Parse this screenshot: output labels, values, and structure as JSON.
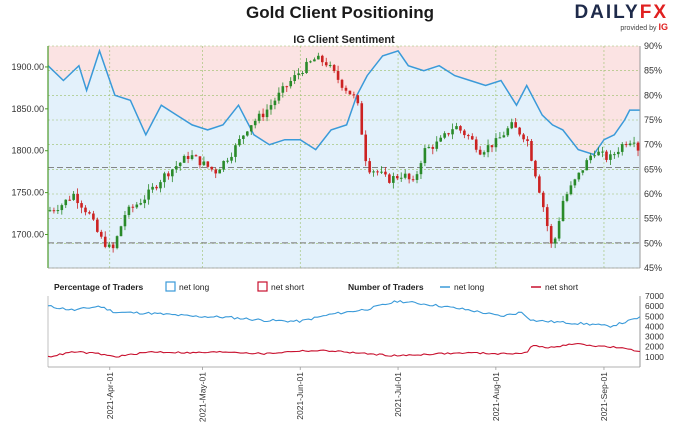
{
  "header": {
    "title": "Gold Client Positioning",
    "logo_main": "DAILY",
    "logo_accent": "FX",
    "logo_sub": "provided by",
    "logo_sub_brand": "IG"
  },
  "colors": {
    "bull": "#2a8a2a",
    "bear": "#cc2222",
    "long": "#3a9ad9",
    "short": "#c8102e",
    "long_fill": "#e3f1fb",
    "short_fill": "#fbe3e3"
  },
  "chart_data": [
    {
      "type": "candlestick",
      "title": "IG Client Sentiment",
      "y_left_ticks": [
        "1700.00",
        "1750.00",
        "1800.00",
        "1850.00",
        "1900.00"
      ],
      "y_left_range": [
        1660,
        1925
      ],
      "y_right_ticks": [
        "45%",
        "50%",
        "55%",
        "60%",
        "65%",
        "70%",
        "75%",
        "80%",
        "85%",
        "90%"
      ],
      "y_right_range": [
        45,
        90
      ],
      "price_path": [
        [
          0,
          1728
        ],
        [
          5,
          1735
        ],
        [
          10,
          1748
        ],
        [
          16,
          1724
        ],
        [
          20,
          1697
        ],
        [
          25,
          1680
        ],
        [
          30,
          1725
        ],
        [
          38,
          1745
        ],
        [
          45,
          1770
        ],
        [
          55,
          1795
        ],
        [
          65,
          1775
        ],
        [
          72,
          1800
        ],
        [
          78,
          1830
        ],
        [
          84,
          1845
        ],
        [
          92,
          1875
        ],
        [
          98,
          1895
        ],
        [
          104,
          1910
        ],
        [
          108,
          1905
        ],
        [
          114,
          1880
        ],
        [
          120,
          1860
        ],
        [
          124,
          1780
        ],
        [
          128,
          1775
        ],
        [
          132,
          1765
        ],
        [
          138,
          1772
        ],
        [
          142,
          1760
        ],
        [
          146,
          1800
        ],
        [
          152,
          1810
        ],
        [
          158,
          1830
        ],
        [
          164,
          1815
        ],
        [
          168,
          1800
        ],
        [
          174,
          1810
        ],
        [
          180,
          1830
        ],
        [
          186,
          1815
        ],
        [
          192,
          1740
        ],
        [
          196,
          1680
        ],
        [
          200,
          1740
        ],
        [
          206,
          1770
        ],
        [
          212,
          1800
        ],
        [
          218,
          1790
        ],
        [
          224,
          1810
        ],
        [
          228,
          1815
        ],
        [
          230,
          1795
        ]
      ],
      "long_pct_path": [
        [
          0,
          86
        ],
        [
          6,
          83
        ],
        [
          12,
          86
        ],
        [
          15,
          81
        ],
        [
          20,
          89
        ],
        [
          26,
          80
        ],
        [
          32,
          79
        ],
        [
          38,
          72
        ],
        [
          44,
          78
        ],
        [
          50,
          76
        ],
        [
          56,
          74
        ],
        [
          62,
          73
        ],
        [
          68,
          74
        ],
        [
          74,
          78
        ],
        [
          80,
          72
        ],
        [
          86,
          70
        ],
        [
          92,
          71
        ],
        [
          98,
          71
        ],
        [
          104,
          69
        ],
        [
          110,
          73
        ],
        [
          116,
          74
        ],
        [
          120,
          80
        ],
        [
          124,
          84
        ],
        [
          130,
          88
        ],
        [
          136,
          89
        ],
        [
          140,
          86
        ],
        [
          146,
          85
        ],
        [
          152,
          86
        ],
        [
          158,
          84
        ],
        [
          164,
          83
        ],
        [
          170,
          82
        ],
        [
          176,
          83
        ],
        [
          182,
          78
        ],
        [
          186,
          82
        ],
        [
          192,
          76
        ],
        [
          196,
          74
        ],
        [
          200,
          73
        ],
        [
          206,
          69
        ],
        [
          212,
          68
        ],
        [
          216,
          71
        ],
        [
          220,
          72
        ],
        [
          224,
          75
        ],
        [
          226,
          77
        ],
        [
          230,
          77
        ]
      ],
      "dashed_price_levels": [
        1690,
        1780
      ],
      "x_tick_positions": [
        24,
        60,
        98,
        136,
        174,
        216
      ]
    },
    {
      "type": "line",
      "legend": {
        "pct_title": "Percentage of Traders",
        "pct_long": "net long",
        "pct_short": "net short",
        "num_title": "Number of Traders",
        "num_long": "net long",
        "num_short": "net short"
      },
      "y_ticks": [
        "1000",
        "2000",
        "3000",
        "4000",
        "5000",
        "6000",
        "7000"
      ],
      "y_range": [
        0,
        7000
      ],
      "x_labels": [
        "2021-Apr-01",
        "2021-May-01",
        "2021-Jun-01",
        "2021-Jul-01",
        "2021-Aug-01",
        "2021-Sep-01"
      ],
      "x_tick_positions": [
        24,
        60,
        98,
        136,
        174,
        216
      ],
      "series": [
        {
          "name": "net long",
          "points": [
            [
              0,
              6000
            ],
            [
              10,
              5600
            ],
            [
              20,
              6000
            ],
            [
              26,
              5400
            ],
            [
              40,
              5300
            ],
            [
              56,
              5000
            ],
            [
              70,
              4900
            ],
            [
              84,
              4600
            ],
            [
              98,
              4500
            ],
            [
              110,
              5200
            ],
            [
              124,
              5700
            ],
            [
              136,
              6500
            ],
            [
              150,
              6100
            ],
            [
              164,
              5600
            ],
            [
              176,
              5000
            ],
            [
              184,
              5400
            ],
            [
              188,
              4600
            ],
            [
              200,
              4400
            ],
            [
              212,
              4200
            ],
            [
              218,
              4000
            ],
            [
              224,
              4400
            ],
            [
              230,
              4900
            ]
          ]
        },
        {
          "name": "net short",
          "points": [
            [
              0,
              1000
            ],
            [
              10,
              1500
            ],
            [
              20,
              1300
            ],
            [
              26,
              1000
            ],
            [
              40,
              1500
            ],
            [
              56,
              1400
            ],
            [
              70,
              1500
            ],
            [
              84,
              1300
            ],
            [
              98,
              1600
            ],
            [
              110,
              1600
            ],
            [
              124,
              1300
            ],
            [
              136,
              1100
            ],
            [
              150,
              1300
            ],
            [
              164,
              1400
            ],
            [
              176,
              1300
            ],
            [
              186,
              1400
            ],
            [
              188,
              2100
            ],
            [
              196,
              1900
            ],
            [
              204,
              2300
            ],
            [
              212,
              2100
            ],
            [
              222,
              1900
            ],
            [
              230,
              1500
            ]
          ]
        }
      ]
    }
  ]
}
